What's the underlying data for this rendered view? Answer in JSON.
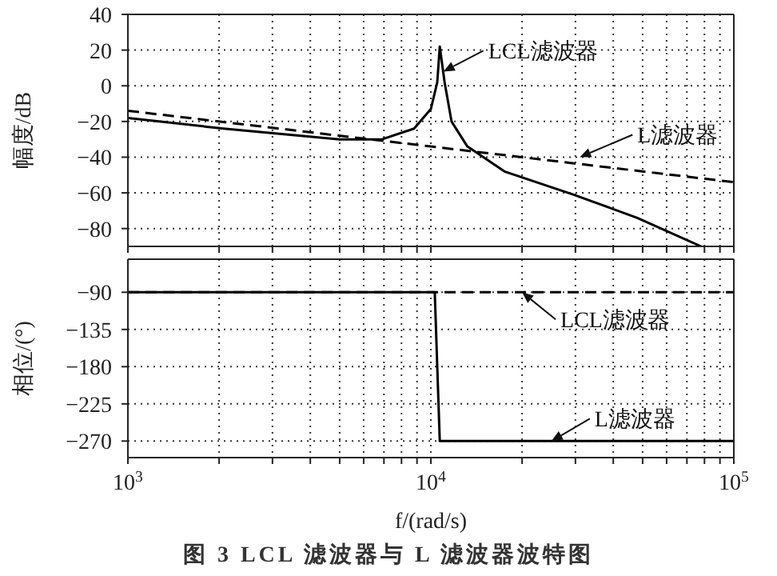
{
  "chart_data": [
    {
      "type": "line",
      "ylabel": "幅度/dB",
      "log": "x",
      "grid": true,
      "tick_labels": "y",
      "xlim": [
        1000,
        100000
      ],
      "xticks": [
        {
          "value": 1000,
          "label": null
        },
        {
          "value": 2000,
          "label": null
        },
        {
          "value": 3000,
          "label": null
        },
        {
          "value": 4000,
          "label": null
        },
        {
          "value": 5000,
          "label": null
        },
        {
          "value": 6000,
          "label": null
        },
        {
          "value": 7000,
          "label": null
        },
        {
          "value": 8000,
          "label": null
        },
        {
          "value": 9000,
          "label": null
        },
        {
          "value": 10000,
          "label": null
        },
        {
          "value": 20000,
          "label": null
        },
        {
          "value": 30000,
          "label": null
        },
        {
          "value": 40000,
          "label": null
        },
        {
          "value": 50000,
          "label": null
        },
        {
          "value": 60000,
          "label": null
        },
        {
          "value": 70000,
          "label": null
        },
        {
          "value": 80000,
          "label": null
        },
        {
          "value": 90000,
          "label": null
        },
        {
          "value": 100000,
          "label": null
        }
      ],
      "ylim": [
        -90,
        40
      ],
      "yticks": [
        -80,
        -60,
        -40,
        -20,
        0,
        20,
        40
      ],
      "series": [
        {
          "color": "#000000",
          "line_style": "solid",
          "x": [
            1000,
            2070,
            5000,
            6900,
            8800,
            10000,
            10500,
            10700,
            11100,
            11700,
            13200,
            17500,
            29600,
            48000,
            78000
          ],
          "values": [
            -18,
            -24,
            -30,
            -30,
            -24,
            -13,
            2,
            22,
            2,
            -20,
            -34,
            -48,
            -61,
            -74,
            -90
          ]
        },
        {
          "color": "#000000",
          "line_style": "dashed",
          "x": [
            1000,
            100000
          ],
          "values": [
            -14,
            -54
          ]
        }
      ],
      "annotations": [
        {
          "text": "LCL滤波器",
          "x": 11000,
          "y": 8
        },
        {
          "text": "L滤波器",
          "x": 31000,
          "y": -40
        }
      ]
    },
    {
      "type": "line",
      "title": "图 3  LCL 滤波器与 L 滤波器波特图",
      "xlabel": "f/(rad/s)",
      "ylabel": "相位/(°)",
      "log": "x",
      "grid": true,
      "xlim": [
        1000,
        100000
      ],
      "xticks": [
        {
          "value": 1000,
          "label": "10$^{3}$"
        },
        {
          "value": 2000,
          "label": null
        },
        {
          "value": 3000,
          "label": null
        },
        {
          "value": 4000,
          "label": null
        },
        {
          "value": 5000,
          "label": null
        },
        {
          "value": 6000,
          "label": null
        },
        {
          "value": 7000,
          "label": null
        },
        {
          "value": 8000,
          "label": null
        },
        {
          "value": 9000,
          "label": null
        },
        {
          "value": 10000,
          "label": "10$^{4}$"
        },
        {
          "value": 20000,
          "label": null
        },
        {
          "value": 30000,
          "label": null
        },
        {
          "value": 40000,
          "label": null
        },
        {
          "value": 50000,
          "label": null
        },
        {
          "value": 60000,
          "label": null
        },
        {
          "value": 70000,
          "label": null
        },
        {
          "value": 80000,
          "label": null
        },
        {
          "value": 90000,
          "label": null
        },
        {
          "value": 100000,
          "label": "10$^{5}$"
        }
      ],
      "ylim": [
        -290,
        -50
      ],
      "yticks": [
        -270,
        -225,
        -180,
        -135,
        -90
      ],
      "series": [
        {
          "color": "#000000",
          "line_style": "dashed",
          "x": [
            1000,
            100000
          ],
          "values": [
            -90,
            -90
          ]
        },
        {
          "color": "#000000",
          "line_style": "solid",
          "x": [
            1000,
            10300,
            10700,
            100000
          ],
          "values": [
            -90,
            -90,
            -270,
            -270
          ]
        }
      ],
      "annotations": [
        {
          "text": "LCL滤波器",
          "x": 20000,
          "y": -90
        },
        {
          "text": "L滤波器",
          "x": 25000,
          "y": -270
        }
      ]
    }
  ]
}
